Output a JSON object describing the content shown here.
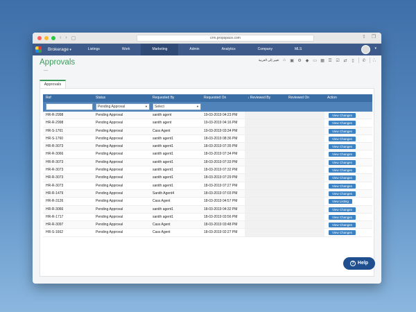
{
  "browser": {
    "url": "crm.propspace.com"
  },
  "nav": {
    "brand": "Brokerage",
    "items": [
      {
        "label": "Listings"
      },
      {
        "label": "Work"
      },
      {
        "label": "Marketing"
      },
      {
        "label": "Admin"
      },
      {
        "label": "Analytics"
      },
      {
        "label": "Company"
      },
      {
        "label": "MLS"
      }
    ]
  },
  "page": {
    "title": "Approvals",
    "language_label": "تغيير إلى العربية"
  },
  "tabs": [
    {
      "label": "Approvals"
    }
  ],
  "table": {
    "headers": [
      "Ref",
      "Status",
      "Requested By",
      "Requested On",
      "Reviewed By",
      "Reviewed On",
      "Action"
    ],
    "filters": {
      "status_value": "Pending Approval",
      "requested_by_value": "Select"
    },
    "rows": [
      {
        "ref": "HR-R-2998",
        "status": "Pending Approval",
        "by": "sanith agent",
        "on": "19-03-2019 04:23 PM",
        "action": "View Changes"
      },
      {
        "ref": "HR-R-2998",
        "status": "Pending Approval",
        "by": "sanith agent",
        "on": "19-03-2019 04:16 PM",
        "action": "View Changes"
      },
      {
        "ref": "HR-S-1761",
        "status": "Pending Approval",
        "by": "Cass Agent",
        "on": "19-03-2019 03:34 PM",
        "action": "View Changes"
      },
      {
        "ref": "HR-S-1760",
        "status": "Pending Approval",
        "by": "sanith agent1",
        "on": "18-03-2019 08:36 PM",
        "action": "View Changes"
      },
      {
        "ref": "HR-R-3073",
        "status": "Pending Approval",
        "by": "sanith agent1",
        "on": "18-03-2019 07:35 PM",
        "action": "View Changes"
      },
      {
        "ref": "HR-R-3066",
        "status": "Pending Approval",
        "by": "sanith agent1",
        "on": "18-03-2019 07:34 PM",
        "action": "View Changes"
      },
      {
        "ref": "HR-R-3073",
        "status": "Pending Approval",
        "by": "sanith agent1",
        "on": "18-03-2019 07:33 PM",
        "action": "View Changes"
      },
      {
        "ref": "HR-R-3073",
        "status": "Pending Approval",
        "by": "sanith agent1",
        "on": "18-03-2019 07:32 PM",
        "action": "View Changes"
      },
      {
        "ref": "HR-R-3073",
        "status": "Pending Approval",
        "by": "sanith agent1",
        "on": "18-03-2019 07:29 PM",
        "action": "View Changes"
      },
      {
        "ref": "HR-R-3073",
        "status": "Pending Approval",
        "by": "sanith agent1",
        "on": "18-03-2019 07:27 PM",
        "action": "View Changes"
      },
      {
        "ref": "HR-R-1479",
        "status": "Pending Approval",
        "by": "Sanith Agent4",
        "on": "18-03-2019 07:03 PM",
        "action": "View Changes"
      },
      {
        "ref": "HR-R-3126",
        "status": "Pending Approval",
        "by": "Cass Agent",
        "on": "18-03-2019 04:57 PM",
        "action": "View Listing"
      },
      {
        "ref": "HR-R-3066",
        "status": "Pending Approval",
        "by": "sanith agent1",
        "on": "18-03-2019 04:32 PM",
        "action": "View Changes"
      },
      {
        "ref": "HR-R-1717",
        "status": "Pending Approval",
        "by": "sanith agent1",
        "on": "18-03-2019 03:56 PM",
        "action": "View Changes"
      },
      {
        "ref": "HR-R-3097",
        "status": "Pending Approval",
        "by": "Cass Agent",
        "on": "18-03-2019 03:48 PM",
        "action": "View Changes"
      },
      {
        "ref": "HR-S-1662",
        "status": "Pending Approval",
        "by": "Cass Agent",
        "on": "18-03-2019 02:27 PM",
        "action": "View Changes"
      }
    ]
  },
  "help": {
    "label": "Help"
  },
  "colors": {
    "accent_green": "#3c9a5c",
    "nav_bg": "#3d5a8a",
    "table_header": "#3b6ea5",
    "button": "#3b82c4"
  }
}
